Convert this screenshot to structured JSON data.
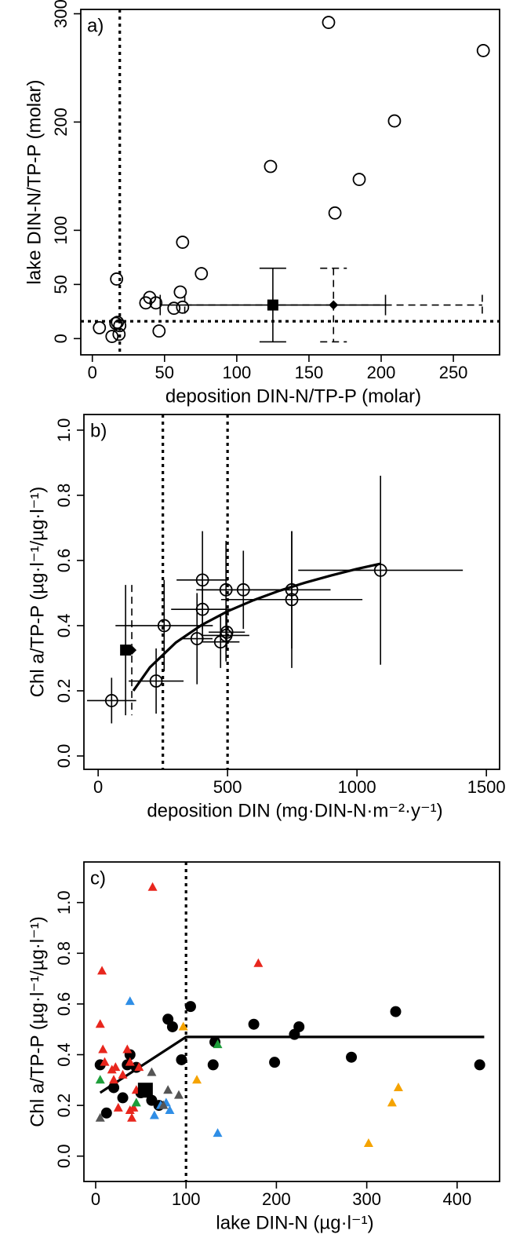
{
  "chart_data": [
    {
      "type": "scatter",
      "label": "a)",
      "x_label": "deposition DIN-N/TP-P (molar)",
      "y_label": "lake DIN-N/TP-P (molar)",
      "xlim": [
        -8,
        282
      ],
      "ylim": [
        -15,
        304
      ],
      "xticks": [
        0,
        50,
        100,
        150,
        200,
        250
      ],
      "yticks": [
        0,
        50,
        100,
        200,
        300
      ],
      "points": {
        "x": [
          4.9,
          13.6,
          16.3,
          18.5,
          17.4,
          19,
          16.8,
          37,
          39.7,
          44,
          46.2,
          56.5,
          60.9,
          62.5,
          62.5,
          75.5,
          123.4,
          163.6,
          168,
          184.8,
          209.2,
          270.7
        ],
        "y": [
          10,
          2,
          14,
          4,
          15,
          12,
          55,
          33,
          38,
          33,
          7,
          28,
          43,
          29,
          89,
          60,
          159,
          292,
          116,
          147,
          201,
          266
        ]
      },
      "means": [
        {
          "marker": "square",
          "x": 125,
          "y": 31,
          "xerr": 78,
          "yerr": 34,
          "linestyle": "solid"
        },
        {
          "marker": "diamond",
          "x": 167,
          "y": 31,
          "xerr": 103,
          "yerr": 34,
          "linestyle": "dashed"
        }
      ],
      "error_caps": true,
      "vlines": [
        19
      ],
      "hlines": [
        16
      ]
    },
    {
      "type": "scatter",
      "label": "b)",
      "x_label": "deposition DIN (mg·DIN-N·m⁻²·y⁻¹)",
      "y_label": "Chl a/TP-P (µg·l⁻¹/µg·l⁻¹)",
      "xlim": [
        -55,
        1551
      ],
      "ylim": [
        -0.041,
        1.048
      ],
      "xticks": [
        0,
        500,
        1000,
        1500
      ],
      "yticks": [
        {
          "value": 0,
          "label": "0.0"
        },
        {
          "value": 0.2,
          "label": "0.2"
        },
        {
          "value": 0.4,
          "label": "0.4"
        },
        {
          "value": 0.6,
          "label": "0.6"
        },
        {
          "value": 0.8,
          "label": "0.8"
        },
        {
          "value": 1,
          "label": "1.0"
        }
      ],
      "points": {
        "x": [
          52,
          224,
          255,
          403,
          403,
          382,
          473,
          494,
          497,
          494,
          561,
          748,
          748,
          1091
        ],
        "y": [
          0.17,
          0.23,
          0.4,
          0.54,
          0.45,
          0.36,
          0.35,
          0.37,
          0.38,
          0.51,
          0.51,
          0.51,
          0.48,
          0.57
        ],
        "xerr": [
          95,
          106,
          188,
          100,
          121,
          60,
          73,
          90,
          70,
          100,
          182,
          150,
          273,
          318
        ],
        "yerr": [
          0.07,
          0.1,
          0.14,
          0.15,
          0.1,
          0.14,
          0.08,
          0.08,
          0.05,
          0.15,
          0.12,
          0.18,
          0.21,
          0.29
        ]
      },
      "means": [
        {
          "marker": "square",
          "x": 106,
          "y": 0.325,
          "yerr": 0.2,
          "linestyle": "solid"
        },
        {
          "marker": "diamond",
          "x": 130,
          "y": 0.325,
          "yerr": 0.2,
          "linestyle": "dashed"
        }
      ],
      "error_caps": false,
      "fit": {
        "x": [
          136,
          200,
          300,
          400,
          500,
          600,
          700,
          800,
          900,
          1000,
          1091
        ],
        "y": [
          0.2,
          0.272,
          0.348,
          0.402,
          0.444,
          0.478,
          0.507,
          0.532,
          0.554,
          0.574,
          0.59
        ]
      },
      "vlines": [
        250,
        500
      ],
      "hlines": []
    },
    {
      "type": "scatter",
      "label": "c)",
      "x_label": "lake DIN-N (µg·l⁻¹)",
      "y_label": "Chl a/TP-P (µg·l⁻¹/µg·l⁻¹)",
      "xlim": [
        -13,
        447
      ],
      "ylim": [
        -0.1,
        1.16
      ],
      "xticks": [
        0,
        100,
        200,
        300,
        400
      ],
      "yticks": [
        {
          "value": 0,
          "label": "0.0"
        },
        {
          "value": 0.2,
          "label": "0.2"
        },
        {
          "value": 0.4,
          "label": "0.4"
        },
        {
          "value": 0.6,
          "label": "0.6"
        },
        {
          "value": 0.8,
          "label": "0.8"
        },
        {
          "value": 1,
          "label": "1.0"
        }
      ],
      "series": [
        {
          "color": "#000000",
          "marker": "circle",
          "x": [
            5,
            12,
            20,
            30,
            35,
            38,
            45,
            50,
            62,
            70,
            80,
            85,
            95,
            105,
            130,
            132,
            175,
            198,
            220,
            225,
            283,
            332,
            425
          ],
          "y": [
            0.36,
            0.17,
            0.27,
            0.23,
            0.36,
            0.4,
            0.35,
            0.25,
            0.22,
            0.2,
            0.54,
            0.51,
            0.38,
            0.59,
            0.36,
            0.45,
            0.52,
            0.37,
            0.48,
            0.51,
            0.39,
            0.57,
            0.36
          ]
        },
        {
          "color": "#e8261d",
          "marker": "triangle",
          "x": [
            7,
            5,
            8,
            10,
            18,
            22,
            25,
            30,
            35,
            38,
            38,
            40,
            42,
            45,
            48,
            63,
            180,
            20
          ],
          "y": [
            0.73,
            0.52,
            0.42,
            0.37,
            0.34,
            0.35,
            0.19,
            0.32,
            0.42,
            0.37,
            0.18,
            0.15,
            0.19,
            0.26,
            0.35,
            1.06,
            0.76,
            0.3
          ]
        },
        {
          "color": "#2f8ee6",
          "marker": "triangle",
          "x": [
            38,
            65,
            72,
            78,
            82,
            135
          ],
          "y": [
            0.61,
            0.16,
            0.2,
            0.21,
            0.18,
            0.09
          ]
        },
        {
          "color": "#1e9e3a",
          "marker": "triangle",
          "x": [
            5,
            45,
            135
          ],
          "y": [
            0.3,
            0.21,
            0.44
          ]
        },
        {
          "color": "#555555",
          "marker": "triangle",
          "x": [
            5,
            62,
            75,
            80,
            92
          ],
          "y": [
            0.15,
            0.33,
            0.2,
            0.26,
            0.24
          ]
        },
        {
          "color": "#f5a300",
          "marker": "triangle",
          "x": [
            97,
            112,
            302,
            328,
            335
          ],
          "y": [
            0.51,
            0.3,
            0.05,
            0.21,
            0.27
          ]
        }
      ],
      "means": [
        {
          "marker": "bigsquare",
          "x": 55,
          "y": 0.26
        }
      ],
      "fit": {
        "x": [
          5,
          100,
          430
        ],
        "y": [
          0.25,
          0.47,
          0.47
        ]
      },
      "vlines": [
        100
      ],
      "hlines": []
    }
  ]
}
